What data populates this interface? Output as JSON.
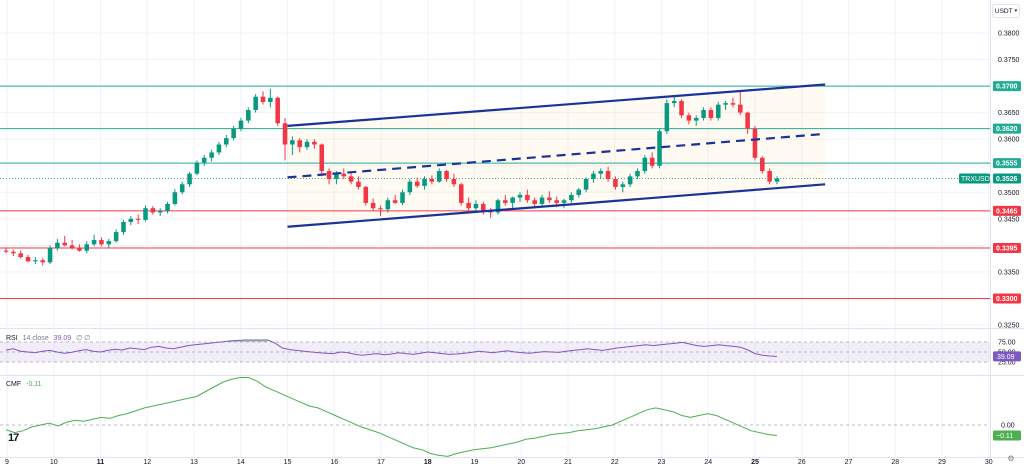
{
  "toolbar": {
    "currency": "USDT"
  },
  "price_axis": {
    "ticks": [
      "0.3800",
      "0.3750",
      "0.3700",
      "0.3650",
      "0.3600",
      "0.3550",
      "0.3500",
      "0.3450",
      "0.3400",
      "0.3350",
      "0.3300",
      "0.3250"
    ],
    "current_price_label": "0.3526",
    "symbol_badge": "TRXUSDT"
  },
  "time_axis": {
    "ticks": [
      "9",
      "10",
      "11",
      "12",
      "13",
      "14",
      "15",
      "16",
      "17",
      "18",
      "19",
      "20",
      "21",
      "22",
      "23",
      "24",
      "25",
      "26",
      "27",
      "28",
      "29",
      "30"
    ]
  },
  "levels": [
    {
      "value": 0.37,
      "label": "0.3700",
      "color": "#22ab94"
    },
    {
      "value": 0.362,
      "label": "0.3620",
      "color": "#22ab94"
    },
    {
      "value": 0.3555,
      "label": "0.3555",
      "color": "#22ab94"
    },
    {
      "value": 0.3465,
      "label": "0.3465",
      "color": "#f23645"
    },
    {
      "value": 0.3395,
      "label": "0.3395",
      "color": "#f23645"
    },
    {
      "value": 0.33,
      "label": "0.3300",
      "color": "#f23645"
    }
  ],
  "rsi": {
    "name": "RSI",
    "params": "14 close",
    "value": "39.09",
    "extra": "∅ ∅",
    "axis": [
      "75.00",
      "50.00",
      "25.00"
    ],
    "value_badge": "39.09",
    "color": "#7e57c2"
  },
  "cmf": {
    "name": "CMF",
    "value": "-0.11",
    "axis": [
      "0.00"
    ],
    "value_badge": "−0.11",
    "color": "#4caf50"
  },
  "colors": {
    "up": "#089981",
    "down": "#f23645",
    "channel": "#1a3399",
    "rsi_band": "rgba(126,87,194,0.10)"
  },
  "chart_data": {
    "type": "candlestick",
    "symbol": "TRXUSDT",
    "ylim": [
      0.3225,
      0.3825
    ],
    "x_axis_days": [
      "9",
      "10",
      "11",
      "12",
      "13",
      "14",
      "15",
      "16",
      "17",
      "18",
      "19",
      "20",
      "21",
      "22",
      "23",
      "24",
      "25",
      "26",
      "27",
      "28",
      "29",
      "30"
    ],
    "candles": [
      [
        0.339,
        0.3395,
        0.3385,
        0.3388
      ],
      [
        0.3388,
        0.3392,
        0.338,
        0.3385
      ],
      [
        0.3385,
        0.339,
        0.3375,
        0.3378
      ],
      [
        0.3378,
        0.3382,
        0.3368,
        0.337
      ],
      [
        0.337,
        0.3378,
        0.3365,
        0.3372
      ],
      [
        0.3372,
        0.3376,
        0.3362,
        0.3368
      ],
      [
        0.3368,
        0.34,
        0.3365,
        0.3395
      ],
      [
        0.3395,
        0.3412,
        0.339,
        0.3405
      ],
      [
        0.3405,
        0.3418,
        0.3398,
        0.34
      ],
      [
        0.34,
        0.341,
        0.3392,
        0.3395
      ],
      [
        0.3395,
        0.3402,
        0.3388,
        0.339
      ],
      [
        0.339,
        0.3408,
        0.3385,
        0.3402
      ],
      [
        0.3402,
        0.342,
        0.3398,
        0.341
      ],
      [
        0.341,
        0.3415,
        0.3398,
        0.3402
      ],
      [
        0.3402,
        0.3412,
        0.3395,
        0.3408
      ],
      [
        0.3408,
        0.343,
        0.3405,
        0.3425
      ],
      [
        0.3425,
        0.3448,
        0.342,
        0.3444
      ],
      [
        0.3444,
        0.3455,
        0.3438,
        0.345
      ],
      [
        0.345,
        0.3458,
        0.344,
        0.3448
      ],
      [
        0.3448,
        0.3475,
        0.3445,
        0.347
      ],
      [
        0.347,
        0.3474,
        0.3458,
        0.3462
      ],
      [
        0.3462,
        0.347,
        0.3455,
        0.3465
      ],
      [
        0.3465,
        0.3482,
        0.346,
        0.3478
      ],
      [
        0.3478,
        0.3506,
        0.3475,
        0.35
      ],
      [
        0.35,
        0.352,
        0.3496,
        0.3515
      ],
      [
        0.3515,
        0.3538,
        0.351,
        0.3535
      ],
      [
        0.3535,
        0.356,
        0.3532,
        0.3556
      ],
      [
        0.3556,
        0.357,
        0.355,
        0.3565
      ],
      [
        0.3565,
        0.358,
        0.3558,
        0.3575
      ],
      [
        0.3575,
        0.3595,
        0.357,
        0.359
      ],
      [
        0.359,
        0.3608,
        0.3585,
        0.3602
      ],
      [
        0.3602,
        0.3625,
        0.3598,
        0.362
      ],
      [
        0.362,
        0.364,
        0.3615,
        0.3635
      ],
      [
        0.3635,
        0.366,
        0.363,
        0.3655
      ],
      [
        0.3655,
        0.3685,
        0.365,
        0.368
      ],
      [
        0.368,
        0.369,
        0.3665,
        0.367
      ],
      [
        0.367,
        0.3695,
        0.366,
        0.3678
      ],
      [
        0.3678,
        0.368,
        0.3625,
        0.363
      ],
      [
        0.363,
        0.364,
        0.356,
        0.359
      ],
      [
        0.359,
        0.3605,
        0.357,
        0.3598
      ],
      [
        0.3598,
        0.3602,
        0.3575,
        0.3585
      ],
      [
        0.3585,
        0.36,
        0.358,
        0.3595
      ],
      [
        0.3595,
        0.36,
        0.3582,
        0.359
      ],
      [
        0.359,
        0.3592,
        0.353,
        0.354
      ],
      [
        0.354,
        0.3545,
        0.3515,
        0.3525
      ],
      [
        0.3525,
        0.354,
        0.3515,
        0.3535
      ],
      [
        0.3535,
        0.3545,
        0.3525,
        0.353
      ],
      [
        0.353,
        0.3538,
        0.3515,
        0.352
      ],
      [
        0.352,
        0.353,
        0.3505,
        0.351
      ],
      [
        0.351,
        0.3512,
        0.3475,
        0.348
      ],
      [
        0.348,
        0.3488,
        0.3465,
        0.347
      ],
      [
        0.347,
        0.3475,
        0.3455,
        0.3468
      ],
      [
        0.3468,
        0.349,
        0.3462,
        0.3485
      ],
      [
        0.3485,
        0.3495,
        0.3478,
        0.348
      ],
      [
        0.348,
        0.3505,
        0.3476,
        0.35
      ],
      [
        0.35,
        0.3525,
        0.3495,
        0.352
      ],
      [
        0.352,
        0.3528,
        0.3508,
        0.3512
      ],
      [
        0.3512,
        0.353,
        0.3505,
        0.3525
      ],
      [
        0.3525,
        0.3532,
        0.3515,
        0.352
      ],
      [
        0.352,
        0.3545,
        0.3518,
        0.354
      ],
      [
        0.354,
        0.3542,
        0.352,
        0.3525
      ],
      [
        0.3525,
        0.3535,
        0.351,
        0.3515
      ],
      [
        0.3515,
        0.3518,
        0.3475,
        0.348
      ],
      [
        0.348,
        0.349,
        0.3465,
        0.347
      ],
      [
        0.347,
        0.3485,
        0.3462,
        0.3478
      ],
      [
        0.3478,
        0.3482,
        0.3458,
        0.3465
      ],
      [
        0.3465,
        0.347,
        0.3452,
        0.3462
      ],
      [
        0.3462,
        0.3488,
        0.3458,
        0.3485
      ],
      [
        0.3485,
        0.3495,
        0.3475,
        0.348
      ],
      [
        0.348,
        0.3492,
        0.347,
        0.349
      ],
      [
        0.349,
        0.35,
        0.3482,
        0.3495
      ],
      [
        0.3495,
        0.3505,
        0.348,
        0.3485
      ],
      [
        0.3485,
        0.349,
        0.347,
        0.3478
      ],
      [
        0.3478,
        0.3495,
        0.3475,
        0.349
      ],
      [
        0.349,
        0.3502,
        0.348,
        0.3485
      ],
      [
        0.3485,
        0.3492,
        0.3472,
        0.348
      ],
      [
        0.348,
        0.3488,
        0.347,
        0.3485
      ],
      [
        0.3485,
        0.35,
        0.348,
        0.3495
      ],
      [
        0.3495,
        0.3508,
        0.349,
        0.3505
      ],
      [
        0.3505,
        0.3528,
        0.35,
        0.3525
      ],
      [
        0.3525,
        0.354,
        0.3518,
        0.3535
      ],
      [
        0.3535,
        0.3545,
        0.3525,
        0.354
      ],
      [
        0.354,
        0.3548,
        0.352,
        0.3525
      ],
      [
        0.3525,
        0.353,
        0.3505,
        0.351
      ],
      [
        0.351,
        0.352,
        0.35,
        0.3515
      ],
      [
        0.3515,
        0.3535,
        0.351,
        0.353
      ],
      [
        0.353,
        0.3545,
        0.3525,
        0.354
      ],
      [
        0.354,
        0.357,
        0.3535,
        0.3565
      ],
      [
        0.3565,
        0.3575,
        0.3545,
        0.355
      ],
      [
        0.355,
        0.362,
        0.3545,
        0.3615
      ],
      [
        0.3615,
        0.3675,
        0.361,
        0.3668
      ],
      [
        0.3668,
        0.368,
        0.366,
        0.3672
      ],
      [
        0.3672,
        0.3675,
        0.364,
        0.3645
      ],
      [
        0.3645,
        0.365,
        0.3628,
        0.3635
      ],
      [
        0.3635,
        0.3645,
        0.3625,
        0.364
      ],
      [
        0.364,
        0.366,
        0.3635,
        0.3655
      ],
      [
        0.3655,
        0.366,
        0.3635,
        0.364
      ],
      [
        0.364,
        0.367,
        0.3635,
        0.3665
      ],
      [
        0.3665,
        0.3672,
        0.3655,
        0.3668
      ],
      [
        0.3668,
        0.3678,
        0.366,
        0.3665
      ],
      [
        0.3665,
        0.369,
        0.3645,
        0.365
      ],
      [
        0.365,
        0.3652,
        0.361,
        0.362
      ],
      [
        0.362,
        0.3625,
        0.356,
        0.3565
      ],
      [
        0.3565,
        0.3568,
        0.3535,
        0.354
      ],
      [
        0.354,
        0.3545,
        0.3515,
        0.352
      ],
      [
        0.352,
        0.353,
        0.3515,
        0.3526
      ]
    ],
    "channel": {
      "upper": [
        [
          15,
          0.3625
        ],
        [
          26.5,
          0.3703
        ]
      ],
      "middle": [
        [
          15,
          0.3528
        ],
        [
          26.5,
          0.361
        ]
      ],
      "lower": [
        [
          15,
          0.3435
        ],
        [
          26.5,
          0.3515
        ]
      ]
    },
    "rsi_series": [
      55,
      58,
      52,
      50,
      48,
      52,
      54,
      50,
      47,
      49,
      53,
      56,
      52,
      50,
      54,
      57,
      55,
      60,
      58,
      56,
      62,
      64,
      60,
      58,
      62,
      66,
      68,
      70,
      72,
      74,
      76,
      78,
      79,
      80,
      80,
      80,
      80,
      72,
      60,
      56,
      54,
      52,
      50,
      48,
      47,
      46,
      50,
      48,
      44,
      42,
      44,
      46,
      43,
      45,
      48,
      46,
      44,
      47,
      50,
      48,
      46,
      44,
      45,
      47,
      49,
      52,
      50,
      48,
      51,
      53,
      50,
      48,
      47,
      49,
      51,
      50,
      49,
      52,
      54,
      56,
      58,
      56,
      54,
      57,
      60,
      62,
      64,
      66,
      68,
      66,
      68,
      70,
      72,
      74,
      70,
      66,
      64,
      66,
      68,
      66,
      64,
      62,
      55,
      46,
      42,
      40,
      39.09
    ],
    "cmf_series": [
      -0.05,
      -0.08,
      -0.06,
      -0.02,
      0.0,
      0.02,
      -0.01,
      0.03,
      0.05,
      0.04,
      0.06,
      0.08,
      0.07,
      0.1,
      0.12,
      0.15,
      0.18,
      0.2,
      0.22,
      0.24,
      0.26,
      0.28,
      0.3,
      0.35,
      0.4,
      0.45,
      0.48,
      0.5,
      0.5,
      0.46,
      0.4,
      0.36,
      0.32,
      0.28,
      0.24,
      0.2,
      0.18,
      0.14,
      0.1,
      0.06,
      0.02,
      -0.02,
      -0.05,
      -0.08,
      -0.12,
      -0.16,
      -0.2,
      -0.24,
      -0.26,
      -0.3,
      -0.32,
      -0.33,
      -0.3,
      -0.28,
      -0.26,
      -0.25,
      -0.24,
      -0.22,
      -0.2,
      -0.18,
      -0.15,
      -0.14,
      -0.12,
      -0.1,
      -0.09,
      -0.08,
      -0.06,
      -0.05,
      -0.04,
      -0.02,
      0.0,
      0.04,
      0.08,
      0.12,
      0.16,
      0.18,
      0.16,
      0.14,
      0.1,
      0.08,
      0.1,
      0.12,
      0.1,
      0.06,
      0.02,
      -0.02,
      -0.06,
      -0.08,
      -0.1,
      -0.11
    ]
  }
}
